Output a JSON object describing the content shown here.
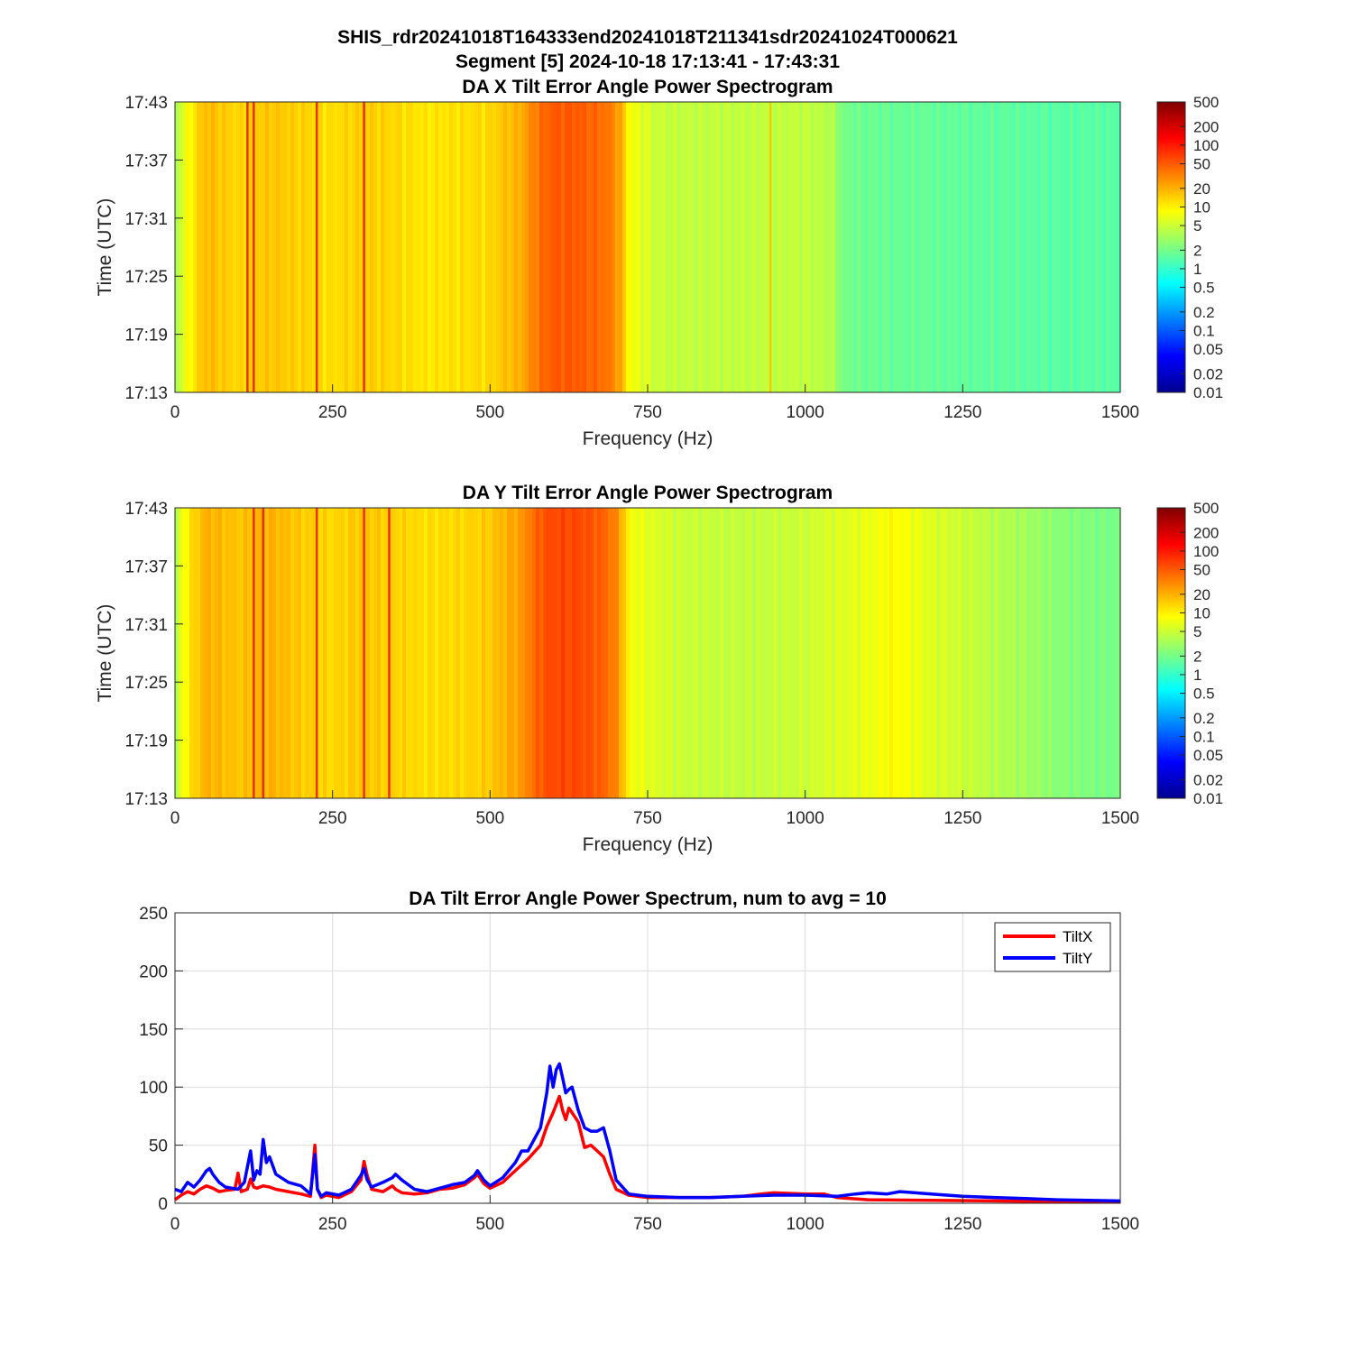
{
  "figure": {
    "title_lines": [
      "SHIS_rdr20241018T164333end20241018T211341sdr20241024T000621",
      "Segment [5] 2024-10-18 17:13:41 - 17:43:31"
    ]
  },
  "chart_data": [
    {
      "type": "heatmap",
      "title": "DA X Tilt Error Angle Power Spectrogram",
      "xlabel": "Frequency (Hz)",
      "ylabel": "Time (UTC)",
      "xlim": [
        0,
        1500
      ],
      "x_ticks": [
        "0",
        "250",
        "500",
        "750",
        "1000",
        "1250",
        "1500"
      ],
      "y_ticks": [
        "17:43",
        "17:37",
        "17:31",
        "17:25",
        "17:19",
        "17:13"
      ],
      "colorbar": {
        "scale": "log",
        "range": [
          0.01,
          500
        ],
        "ticks": [
          "500",
          "200",
          "100",
          "50",
          "20",
          "10",
          "5",
          "2",
          "1",
          "0.5",
          "0.2",
          "0.1",
          "0.05",
          "0.02",
          "0.01"
        ],
        "colormap": "jet"
      },
      "spectrum_profile": {
        "freq": [
          0,
          20,
          50,
          100,
          150,
          200,
          250,
          300,
          350,
          400,
          450,
          500,
          550,
          580,
          600,
          640,
          680,
          700,
          720,
          760,
          800,
          900,
          1000,
          1040,
          1060,
          1100,
          1200,
          1300,
          1400,
          1500
        ],
        "power": [
          3,
          8,
          18,
          13,
          16,
          14,
          12,
          15,
          13,
          11,
          12,
          13,
          20,
          40,
          50,
          50,
          40,
          28,
          8,
          5,
          4.5,
          4.5,
          4.5,
          4,
          2,
          1.8,
          1.7,
          1.6,
          1.5,
          1.5
        ]
      },
      "line_features_hz": [
        115,
        125,
        225,
        300,
        945
      ]
    },
    {
      "type": "heatmap",
      "title": "DA Y Tilt Error Angle Power Spectrogram",
      "xlabel": "Frequency (Hz)",
      "ylabel": "Time (UTC)",
      "xlim": [
        0,
        1500
      ],
      "x_ticks": [
        "0",
        "250",
        "500",
        "750",
        "1000",
        "1250",
        "1500"
      ],
      "y_ticks": [
        "17:43",
        "17:37",
        "17:31",
        "17:25",
        "17:19",
        "17:13"
      ],
      "colorbar": {
        "scale": "log",
        "range": [
          0.01,
          500
        ],
        "ticks": [
          "500",
          "200",
          "100",
          "50",
          "20",
          "10",
          "5",
          "2",
          "1",
          "0.5",
          "0.2",
          "0.1",
          "0.05",
          "0.02",
          "0.01"
        ],
        "colormap": "jet"
      },
      "spectrum_profile": {
        "freq": [
          0,
          20,
          50,
          100,
          150,
          200,
          250,
          300,
          350,
          400,
          450,
          500,
          550,
          580,
          600,
          640,
          680,
          700,
          720,
          760,
          800,
          900,
          1000,
          1100,
          1140,
          1200,
          1300,
          1400,
          1500
        ],
        "power": [
          3,
          10,
          20,
          16,
          20,
          15,
          13,
          16,
          14,
          12,
          13,
          15,
          25,
          50,
          60,
          60,
          45,
          30,
          8,
          6,
          5,
          4.5,
          5,
          7,
          9,
          6,
          4,
          2.5,
          2
        ]
      },
      "line_features_hz": [
        125,
        140,
        225,
        300,
        340
      ]
    },
    {
      "type": "line",
      "title": "DA Tilt Error Angle Power Spectrum, num to avg = 10",
      "xlabel": "",
      "ylabel": "",
      "xlim": [
        0,
        1500
      ],
      "ylim": [
        0,
        250
      ],
      "x_ticks": [
        "0",
        "250",
        "500",
        "750",
        "1000",
        "1250",
        "1500"
      ],
      "y_ticks": [
        "0",
        "50",
        "100",
        "150",
        "200",
        "250"
      ],
      "grid": true,
      "legend_position": "top-right",
      "series": [
        {
          "name": "TiltX",
          "color": "#ff0000",
          "x": [
            0,
            10,
            20,
            30,
            40,
            50,
            60,
            70,
            80,
            95,
            100,
            105,
            115,
            120,
            125,
            130,
            140,
            150,
            160,
            180,
            200,
            215,
            222,
            226,
            232,
            240,
            260,
            280,
            295,
            300,
            305,
            312,
            330,
            345,
            350,
            360,
            380,
            400,
            420,
            440,
            460,
            475,
            480,
            490,
            500,
            520,
            540,
            560,
            580,
            590,
            600,
            605,
            610,
            615,
            620,
            625,
            630,
            640,
            650,
            660,
            670,
            680,
            690,
            700,
            720,
            750,
            800,
            850,
            900,
            930,
            950,
            1000,
            1030,
            1050,
            1100,
            1200,
            1300,
            1400,
            1500
          ],
          "y": [
            3,
            7,
            10,
            8,
            12,
            15,
            13,
            10,
            11,
            12,
            26,
            10,
            12,
            21,
            14,
            13,
            15,
            14,
            12,
            10,
            8,
            6,
            50,
            12,
            5,
            7,
            5,
            10,
            20,
            36,
            24,
            12,
            10,
            15,
            12,
            9,
            8,
            9,
            12,
            13,
            16,
            22,
            25,
            17,
            13,
            18,
            28,
            38,
            50,
            66,
            78,
            85,
            92,
            80,
            72,
            82,
            78,
            70,
            48,
            50,
            45,
            40,
            25,
            12,
            7,
            5,
            5,
            5,
            6,
            8,
            9,
            8,
            8,
            5,
            3,
            2.5,
            2,
            1.5,
            1.5
          ]
        },
        {
          "name": "TiltY",
          "color": "#0000ff",
          "x": [
            0,
            10,
            20,
            30,
            40,
            50,
            55,
            60,
            70,
            80,
            100,
            110,
            120,
            125,
            130,
            135,
            140,
            145,
            150,
            160,
            180,
            200,
            215,
            222,
            226,
            232,
            240,
            260,
            280,
            295,
            300,
            305,
            312,
            330,
            345,
            350,
            360,
            380,
            400,
            420,
            440,
            460,
            475,
            480,
            490,
            500,
            520,
            540,
            550,
            560,
            580,
            590,
            595,
            600,
            605,
            610,
            615,
            620,
            625,
            630,
            640,
            650,
            660,
            670,
            680,
            690,
            700,
            720,
            750,
            800,
            850,
            900,
            950,
            1000,
            1050,
            1080,
            1100,
            1130,
            1150,
            1200,
            1250,
            1300,
            1350,
            1400,
            1500
          ],
          "y": [
            12,
            10,
            18,
            14,
            20,
            28,
            30,
            25,
            18,
            14,
            12,
            18,
            45,
            20,
            28,
            25,
            55,
            35,
            40,
            25,
            18,
            15,
            8,
            42,
            12,
            6,
            9,
            7,
            12,
            24,
            30,
            20,
            14,
            18,
            22,
            25,
            20,
            12,
            10,
            13,
            16,
            18,
            24,
            28,
            20,
            15,
            22,
            35,
            45,
            45,
            65,
            95,
            118,
            100,
            115,
            120,
            108,
            95,
            98,
            100,
            80,
            65,
            62,
            62,
            65,
            45,
            20,
            8,
            6,
            5,
            5,
            6,
            7,
            7,
            6,
            8,
            9,
            8,
            10,
            8,
            6,
            5,
            4,
            3,
            2
          ]
        }
      ]
    }
  ]
}
